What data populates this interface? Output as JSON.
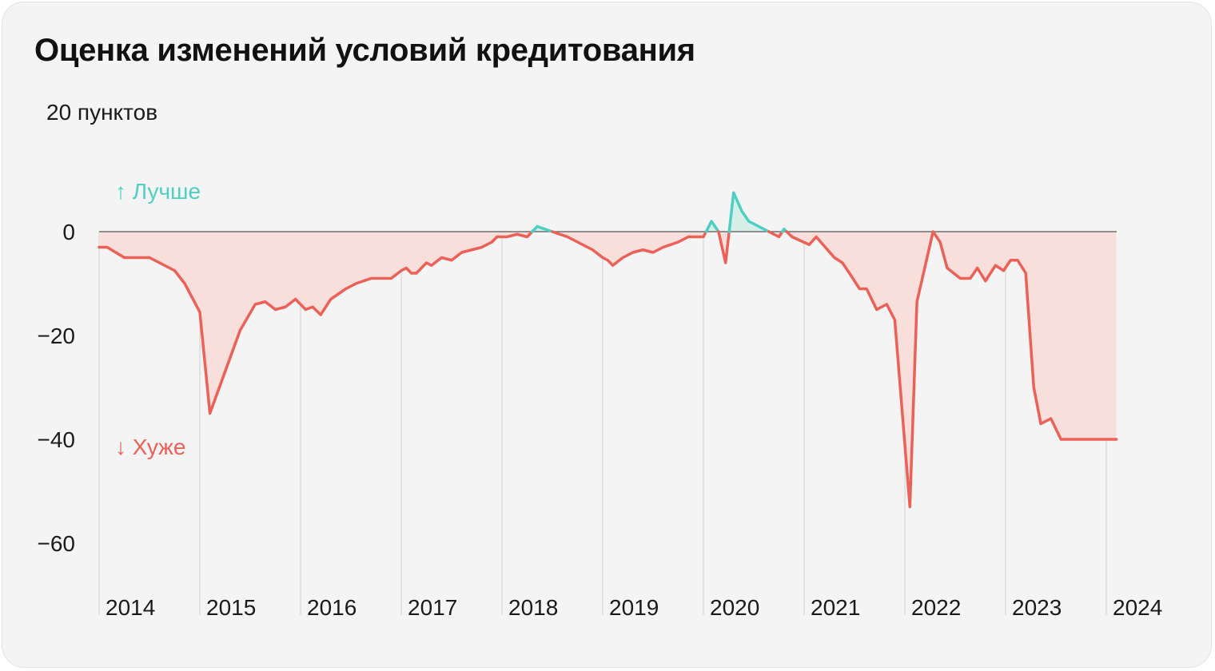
{
  "title": "Оценка изменений условий кредитования",
  "colors": {
    "background": "#f4f4f4",
    "negative_line": "#ec6157",
    "negative_fill": "#f8dfdc",
    "positive_line": "#4fcfc1",
    "positive_fill": "#d6efe9",
    "zero_line": "#6f6f6f",
    "grid": "#d6d6d6"
  },
  "chart_data": {
    "type": "area",
    "ylabel": "пунктов",
    "ylim": [
      -62,
      20
    ],
    "xlim": [
      2014,
      2024.1
    ],
    "yticks": [
      {
        "value": 20,
        "label": "20 пунктов"
      },
      {
        "value": 0,
        "label": "0"
      },
      {
        "value": -20,
        "label": "−20"
      },
      {
        "value": -40,
        "label": "−40"
      },
      {
        "value": -60,
        "label": "−60"
      }
    ],
    "xticks": [
      2014,
      2015,
      2016,
      2017,
      2018,
      2019,
      2020,
      2021,
      2022,
      2023,
      2024
    ],
    "grid": "vertical",
    "annotations": {
      "better": "↑ Лучше",
      "worse": "↓ Хуже"
    },
    "x": [
      2014.0,
      2014.08,
      2014.25,
      2014.5,
      2014.6,
      2014.7,
      2014.75,
      2014.85,
      2015.0,
      2015.1,
      2015.25,
      2015.4,
      2015.55,
      2015.65,
      2015.75,
      2015.85,
      2015.95,
      2016.05,
      2016.12,
      2016.2,
      2016.3,
      2016.45,
      2016.55,
      2016.7,
      2016.8,
      2016.9,
      2017.0,
      2017.05,
      2017.1,
      2017.15,
      2017.25,
      2017.3,
      2017.4,
      2017.5,
      2017.6,
      2017.7,
      2017.8,
      2017.9,
      2017.95,
      2018.05,
      2018.15,
      2018.25,
      2018.35,
      2018.5,
      2018.65,
      2018.8,
      2018.9,
      2019.0,
      2019.05,
      2019.1,
      2019.2,
      2019.3,
      2019.4,
      2019.5,
      2019.6,
      2019.75,
      2019.85,
      2020.0,
      2020.08,
      2020.15,
      2020.22,
      2020.3,
      2020.38,
      2020.45,
      2020.55,
      2020.65,
      2020.75,
      2020.8,
      2020.88,
      2021.05,
      2021.12,
      2021.3,
      2021.38,
      2021.45,
      2021.55,
      2021.62,
      2021.72,
      2021.82,
      2021.9,
      2022.05,
      2022.12,
      2022.28,
      2022.35,
      2022.42,
      2022.55,
      2022.65,
      2022.72,
      2022.8,
      2022.9,
      2022.98,
      2023.05,
      2023.12,
      2023.2,
      2023.28,
      2023.35,
      2023.45,
      2023.55,
      2023.65,
      2023.85,
      2024.0,
      2024.1
    ],
    "values": [
      -3,
      -3,
      -5,
      -5,
      -6,
      -7,
      -7.5,
      -10,
      -15.5,
      -35,
      -27,
      -19,
      -14,
      -13.5,
      -15,
      -14.5,
      -13,
      -15,
      -14.5,
      -16,
      -13,
      -11,
      -10,
      -9,
      -9,
      -9,
      -7.5,
      -7,
      -8,
      -8,
      -6,
      -6.5,
      -5,
      -5.5,
      -4,
      -3.5,
      -3,
      -2,
      -1,
      -1,
      -0.5,
      -1,
      1,
      0,
      -1,
      -2.5,
      -3.5,
      -5,
      -5.5,
      -6.5,
      -5,
      -4,
      -3.5,
      -4,
      -3,
      -2,
      -1,
      -1,
      2,
      0,
      -6,
      7.5,
      4,
      2,
      1,
      0,
      -1,
      0.5,
      -1,
      -2.5,
      -1,
      -5,
      -6,
      -8,
      -11,
      -11,
      -15,
      -14,
      -17,
      -53,
      -13.5,
      0,
      -2,
      -7,
      -9,
      -9,
      -7,
      -9.5,
      -6.5,
      -7.5,
      -5.5,
      -5.5,
      -8,
      -30,
      -37,
      -36,
      -40,
      -40,
      -40,
      -40,
      -40
    ]
  }
}
